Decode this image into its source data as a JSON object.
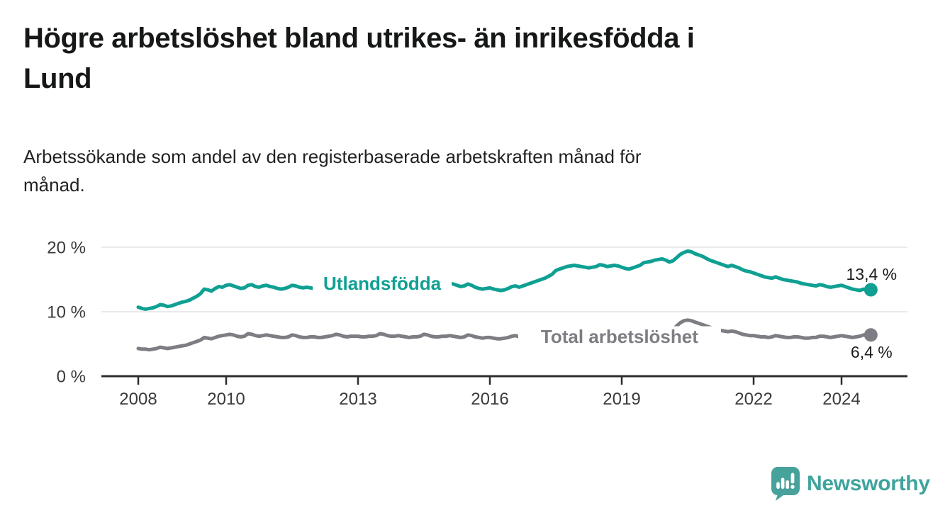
{
  "title": {
    "lines": [
      "Högre arbetslöshet bland utrikes- än inrikesfödda i",
      "Lund"
    ]
  },
  "subtitle": {
    "lines": [
      "Arbetssökande som andel av den registerbaserade arbetskraften månad för",
      "månad."
    ]
  },
  "footer": {
    "brand": "Newsworthy",
    "icon": "newsworthy-speech-bubble-barchart-icon"
  },
  "colors": {
    "foreign_born_line": "#0fa093",
    "total_line": "#7d7d83",
    "title_text": "#161817",
    "axis": "#2d2d2d",
    "tick_label": "#3a3a3a",
    "gridline": "#e4e4e4",
    "value_label": "#1a1a1a",
    "brand_teal": "#47a29b",
    "background": "#ffffff"
  },
  "chart_data": {
    "type": "line",
    "title": "Högre arbetslöshet bland utrikes- än inrikesfödda i Lund",
    "subtitle": "Arbetssökande som andel av den registerbaserade arbetskraften månad för månad.",
    "unit": "%",
    "x_start": 2008.0,
    "x_step": 0.0833333,
    "xlim": [
      2007.1,
      2025.5
    ],
    "ylim": [
      0,
      22
    ],
    "grid": "horizontal",
    "legend_position": "inline-on-line",
    "yticks": [
      {
        "value": 0,
        "label": "0 %"
      },
      {
        "value": 10,
        "label": "10 %"
      },
      {
        "value": 20,
        "label": "20 %"
      }
    ],
    "xticks": [
      {
        "value": 2008,
        "label": "2008"
      },
      {
        "value": 2010,
        "label": "2010"
      },
      {
        "value": 2013,
        "label": "2013"
      },
      {
        "value": 2016,
        "label": "2016"
      },
      {
        "value": 2019,
        "label": "2019"
      },
      {
        "value": 2022,
        "label": "2022"
      },
      {
        "value": 2024,
        "label": "2024"
      }
    ],
    "series": [
      {
        "name": "Utlandsfödda",
        "color": "#0fa093",
        "end_value": 13.4,
        "end_label": "13,4 %",
        "end_label_position": "above",
        "inline_label": {
          "x": 2013.55,
          "y": 14.4
        },
        "values": [
          10.7,
          10.5,
          10.4,
          10.5,
          10.6,
          10.8,
          11.1,
          11.0,
          10.8,
          10.9,
          11.1,
          11.3,
          11.5,
          11.6,
          11.8,
          12.1,
          12.4,
          12.8,
          13.5,
          13.4,
          13.2,
          13.6,
          13.9,
          13.8,
          14.1,
          14.2,
          14.0,
          13.8,
          13.6,
          13.7,
          14.1,
          14.2,
          13.9,
          13.8,
          14.0,
          14.1,
          13.9,
          13.8,
          13.6,
          13.5,
          13.6,
          13.8,
          14.1,
          14.0,
          13.8,
          13.7,
          13.8,
          13.7,
          13.6,
          13.5,
          13.4,
          13.5,
          13.7,
          13.9,
          14.2,
          14.1,
          13.9,
          13.8,
          13.9,
          14.0,
          13.9,
          13.8,
          13.7,
          13.8,
          13.9,
          14.1,
          14.4,
          14.3,
          14.1,
          14.0,
          14.1,
          14.0,
          13.9,
          13.8,
          13.7,
          13.8,
          13.9,
          14.0,
          14.3,
          14.2,
          14.0,
          13.9,
          14.0,
          14.1,
          14.2,
          14.4,
          14.3,
          14.1,
          13.9,
          14.0,
          14.3,
          14.1,
          13.8,
          13.6,
          13.5,
          13.6,
          13.7,
          13.5,
          13.4,
          13.3,
          13.4,
          13.6,
          13.9,
          14.0,
          13.8,
          14.0,
          14.2,
          14.4,
          14.6,
          14.8,
          15.0,
          15.2,
          15.5,
          15.8,
          16.4,
          16.6,
          16.8,
          17.0,
          17.1,
          17.2,
          17.1,
          17.0,
          16.9,
          16.8,
          16.9,
          17.0,
          17.3,
          17.2,
          17.0,
          17.1,
          17.2,
          17.1,
          16.9,
          16.7,
          16.6,
          16.8,
          17.0,
          17.2,
          17.6,
          17.7,
          17.8,
          18.0,
          18.1,
          18.2,
          18.0,
          17.7,
          17.9,
          18.4,
          18.9,
          19.2,
          19.4,
          19.3,
          19.0,
          18.8,
          18.6,
          18.3,
          18.0,
          17.8,
          17.6,
          17.4,
          17.2,
          17.0,
          17.2,
          17.0,
          16.8,
          16.5,
          16.3,
          16.2,
          16.0,
          15.8,
          15.6,
          15.4,
          15.3,
          15.2,
          15.4,
          15.2,
          15.0,
          14.9,
          14.8,
          14.7,
          14.6,
          14.4,
          14.3,
          14.2,
          14.1,
          14.0,
          14.2,
          14.1,
          13.9,
          13.8,
          13.9,
          14.0,
          14.1,
          13.9,
          13.7,
          13.5,
          13.4,
          13.3,
          13.5,
          13.3,
          13.4
        ]
      },
      {
        "name": "Total arbetslöshet",
        "color": "#7d7d83",
        "end_value": 6.4,
        "end_label": "6,4 %",
        "end_label_position": "below",
        "inline_label": {
          "x": 2018.95,
          "y": 6.15
        },
        "values": [
          4.3,
          4.2,
          4.2,
          4.1,
          4.2,
          4.3,
          4.5,
          4.4,
          4.3,
          4.4,
          4.5,
          4.6,
          4.7,
          4.8,
          5.0,
          5.2,
          5.4,
          5.6,
          6.0,
          5.9,
          5.8,
          6.0,
          6.2,
          6.3,
          6.4,
          6.5,
          6.4,
          6.2,
          6.1,
          6.2,
          6.6,
          6.5,
          6.3,
          6.2,
          6.3,
          6.4,
          6.3,
          6.2,
          6.1,
          6.0,
          6.0,
          6.1,
          6.4,
          6.3,
          6.1,
          6.0,
          6.0,
          6.1,
          6.1,
          6.0,
          6.0,
          6.1,
          6.2,
          6.3,
          6.5,
          6.4,
          6.2,
          6.1,
          6.2,
          6.2,
          6.2,
          6.1,
          6.1,
          6.2,
          6.2,
          6.3,
          6.6,
          6.5,
          6.3,
          6.2,
          6.2,
          6.3,
          6.2,
          6.1,
          6.0,
          6.1,
          6.1,
          6.2,
          6.5,
          6.4,
          6.2,
          6.1,
          6.1,
          6.2,
          6.2,
          6.3,
          6.2,
          6.1,
          6.0,
          6.1,
          6.4,
          6.3,
          6.1,
          6.0,
          5.9,
          6.0,
          6.0,
          5.9,
          5.8,
          5.8,
          5.9,
          6.0,
          6.2,
          6.3,
          6.1,
          6.0,
          6.0,
          6.1,
          6.0,
          5.9,
          5.9,
          6.0,
          6.0,
          6.1,
          6.4,
          6.3,
          6.2,
          6.2,
          6.3,
          6.3,
          6.2,
          6.1,
          6.0,
          6.0,
          6.1,
          6.2,
          6.4,
          6.3,
          6.2,
          6.1,
          6.2,
          6.2,
          6.1,
          6.0,
          6.0,
          6.1,
          6.2,
          6.3,
          6.6,
          6.6,
          6.5,
          6.6,
          6.7,
          6.8,
          6.9,
          6.8,
          7.2,
          7.8,
          8.3,
          8.6,
          8.7,
          8.6,
          8.4,
          8.2,
          8.0,
          7.8,
          7.6,
          7.4,
          7.2,
          7.1,
          7.0,
          6.9,
          7.0,
          6.9,
          6.7,
          6.5,
          6.4,
          6.3,
          6.3,
          6.2,
          6.1,
          6.1,
          6.0,
          6.1,
          6.3,
          6.2,
          6.1,
          6.0,
          6.0,
          6.1,
          6.1,
          6.0,
          5.9,
          5.9,
          6.0,
          6.0,
          6.2,
          6.2,
          6.1,
          6.0,
          6.1,
          6.2,
          6.3,
          6.2,
          6.1,
          6.0,
          6.1,
          6.2,
          6.4,
          6.3,
          6.4
        ]
      }
    ]
  }
}
